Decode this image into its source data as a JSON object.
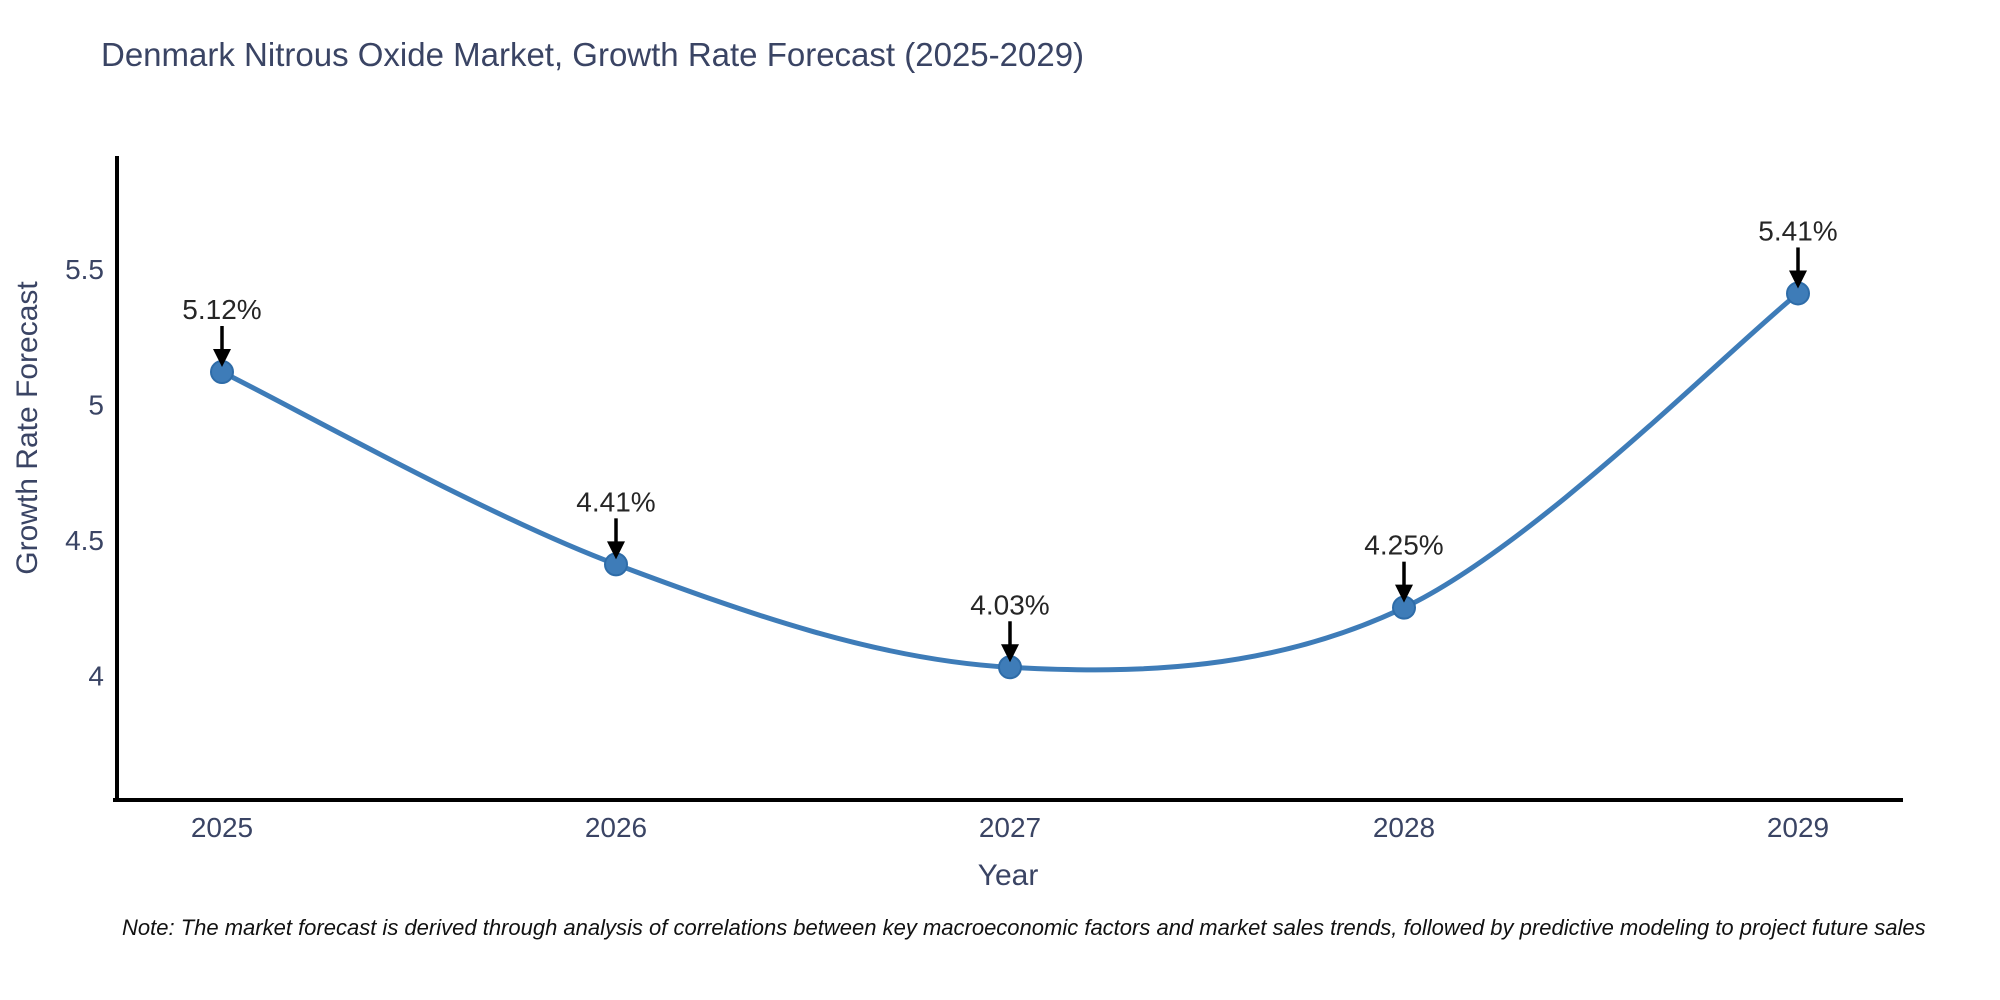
{
  "title": "Denmark Nitrous Oxide Market, Growth Rate Forecast (2025-2029)",
  "note": "Note: The market forecast is derived through analysis of correlations between key macroeconomic factors and market sales trends, followed by predictive modeling to project future sales",
  "chart_data": {
    "type": "line",
    "title": "Denmark Nitrous Oxide Market, Growth Rate Forecast (2025-2029)",
    "x": [
      2025,
      2026,
      2027,
      2028,
      2029
    ],
    "x_tick_labels": [
      "2025",
      "2026",
      "2027",
      "2028",
      "2029"
    ],
    "y": [
      5.12,
      4.41,
      4.03,
      4.25,
      5.41
    ],
    "point_labels": [
      "5.12%",
      "4.41%",
      "4.03%",
      "4.25%",
      "5.41%"
    ],
    "xlabel": "Year",
    "ylabel": "Growth Rate Forecast",
    "yticks": [
      4,
      4.5,
      5,
      5.5
    ],
    "ytick_labels": [
      "4",
      "4.5",
      "5",
      "5.5"
    ],
    "ylim": [
      3.54,
      5.91
    ],
    "grid": false,
    "legend_position": "none",
    "curve": "spline",
    "line_color": "#3e7cb8",
    "marker_color": "#3e7cb8",
    "marker_edge_color": "#2e6ca8",
    "annotation_arrow_color": "#000000",
    "annotation_text_color": "#262626",
    "axis_line_color": "#000000",
    "tick_label_color": "#3a4464",
    "title_color": "#3a4464",
    "background_color": "#ffffff"
  }
}
